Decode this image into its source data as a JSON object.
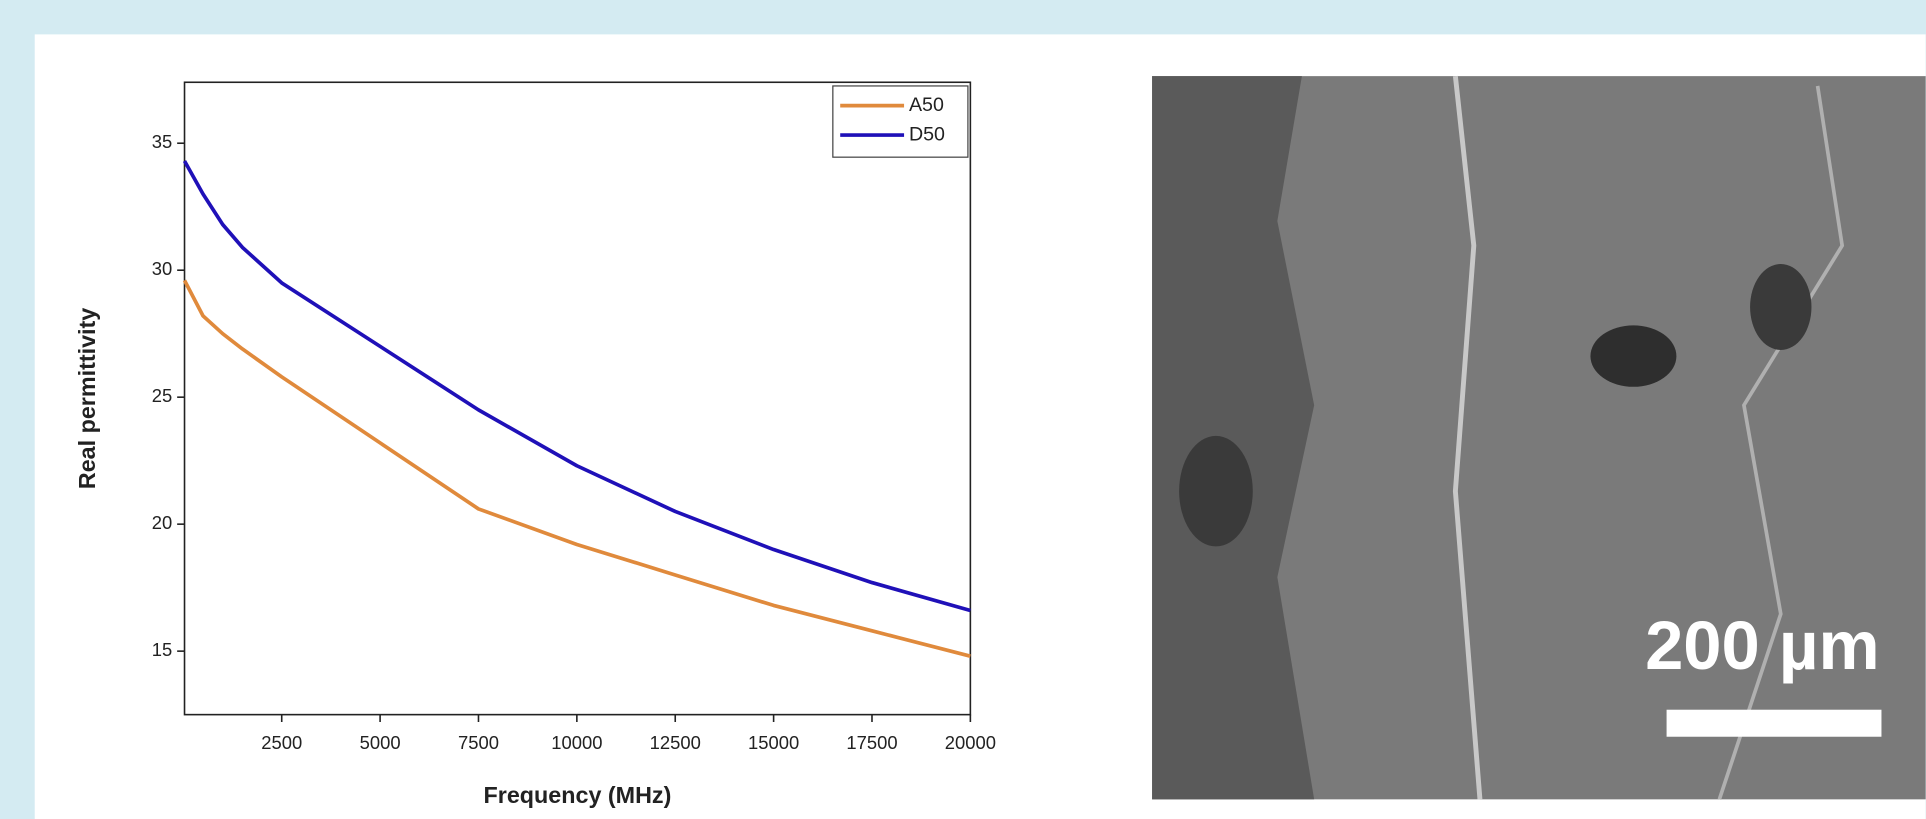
{
  "chart_data": {
    "type": "line",
    "x_label": "Frequency (MHz)",
    "y_label": "Real permittivity",
    "xlim": [
      30,
      20000
    ],
    "ylim": [
      12.5,
      37.4
    ],
    "xticks": [
      2500,
      5000,
      7500,
      10000,
      12500,
      15000,
      17500,
      20000
    ],
    "yticks": [
      15,
      20,
      25,
      30,
      35
    ],
    "x": [
      30,
      500,
      1000,
      1500,
      2500,
      5000,
      7500,
      10000,
      12500,
      15000,
      17500,
      20000
    ],
    "series": [
      {
        "name": "A50",
        "color": "#e08a3c",
        "values": [
          29.6,
          28.2,
          27.5,
          26.9,
          25.8,
          23.2,
          20.6,
          19.2,
          18.0,
          16.8,
          15.8,
          14.8
        ]
      },
      {
        "name": "D50",
        "color": "#1f10b8",
        "values": [
          34.3,
          33.0,
          31.8,
          30.9,
          29.5,
          27.0,
          24.5,
          22.3,
          20.5,
          19.0,
          17.7,
          16.6
        ]
      }
    ],
    "legend": "upper right"
  },
  "image": {
    "scale_label": "200 µm"
  }
}
